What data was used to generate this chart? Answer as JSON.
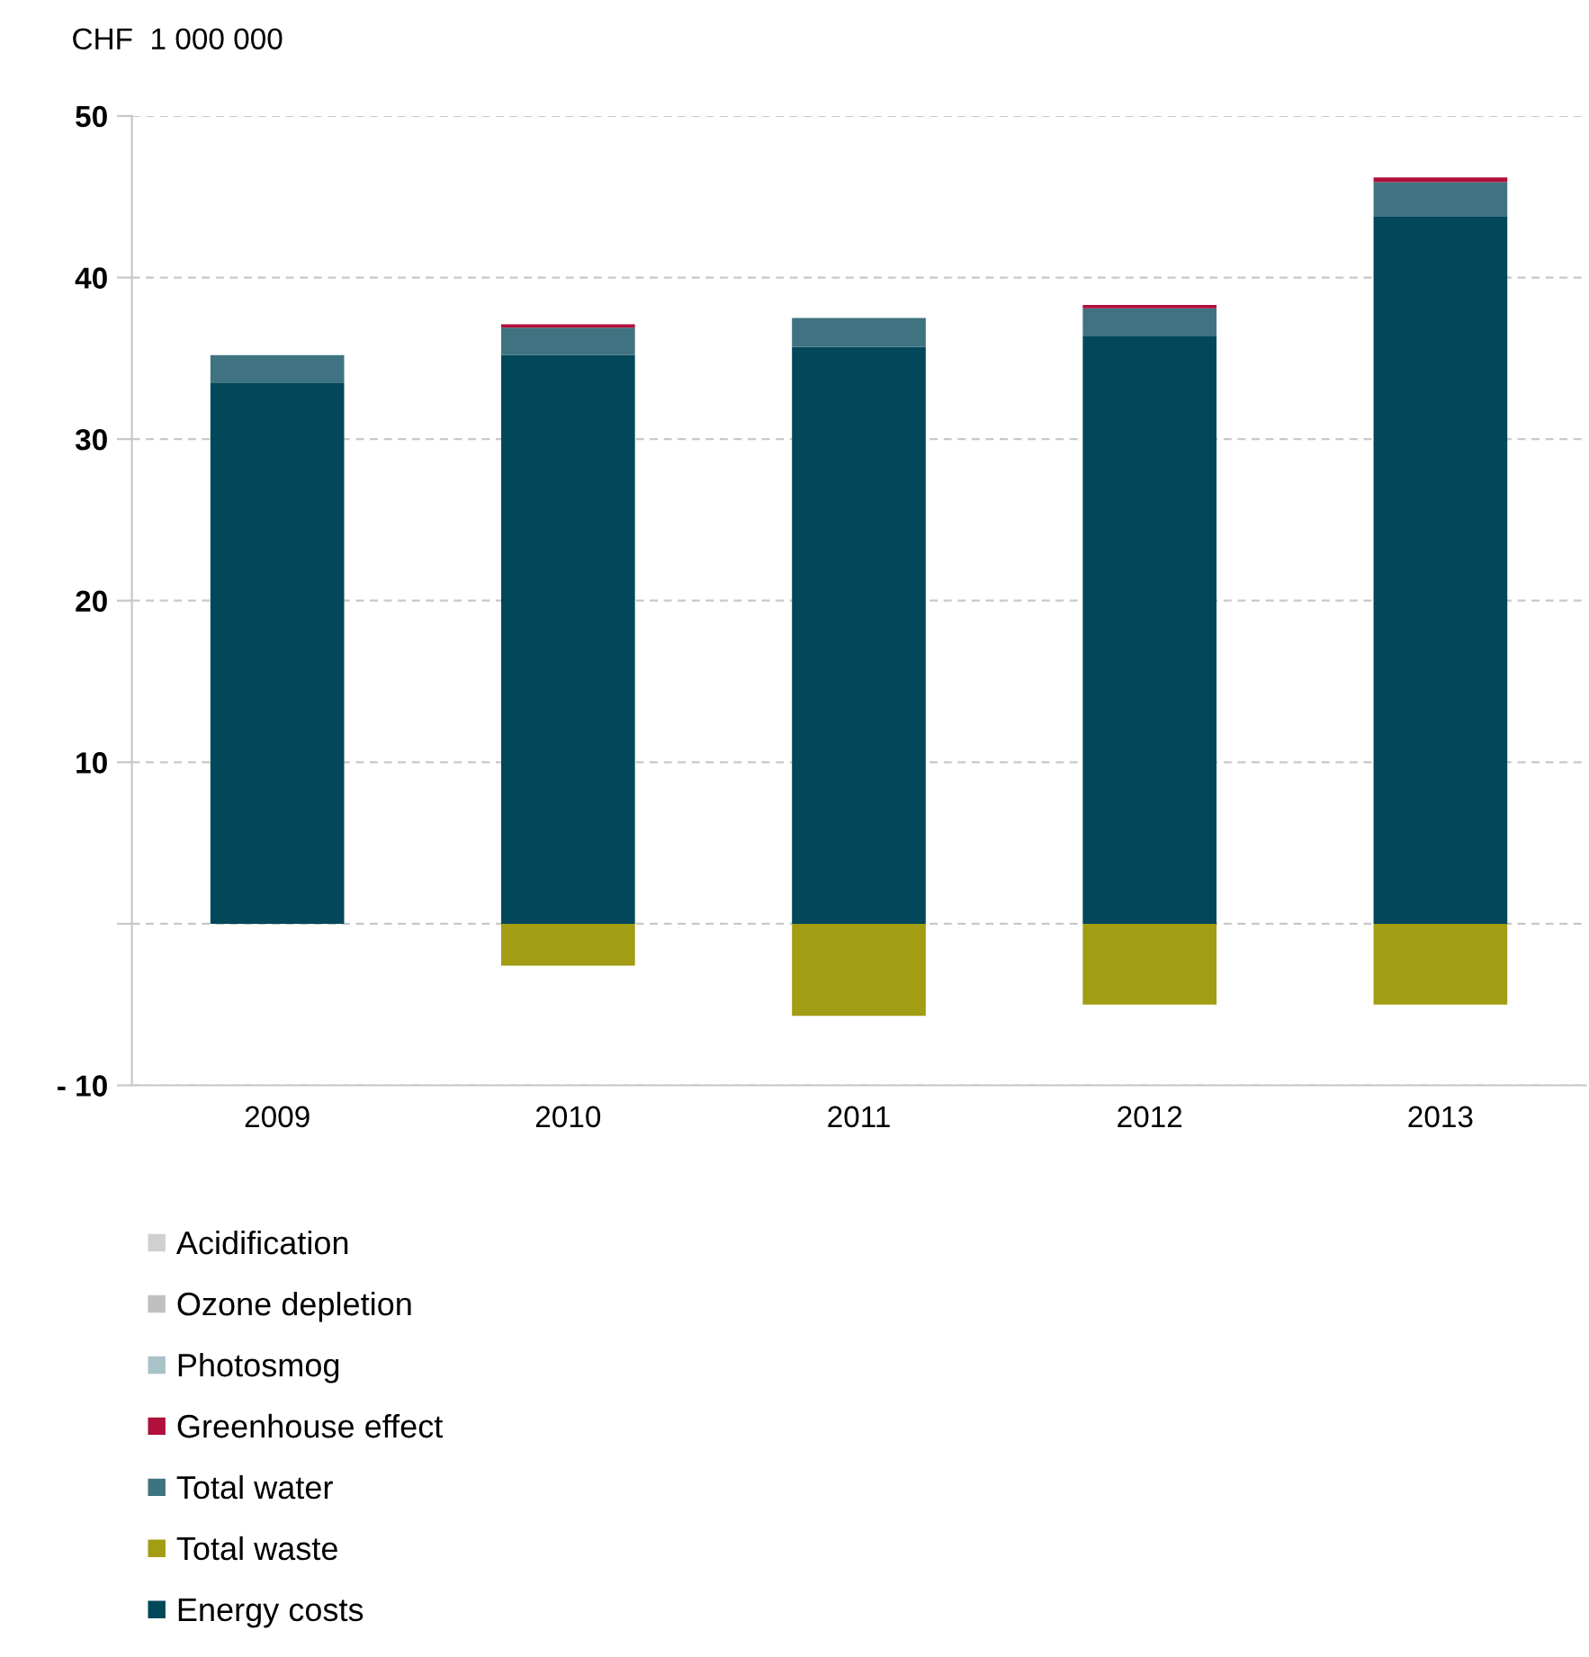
{
  "chart_data": {
    "type": "bar",
    "stacked": true,
    "ylabel": "CHF  1 000 000",
    "categories": [
      "2009",
      "2010",
      "2011",
      "2012",
      "2013"
    ],
    "series": [
      {
        "name": "Energy costs",
        "color": "#02475a",
        "values": [
          33.5,
          35.2,
          35.7,
          36.4,
          43.8
        ]
      },
      {
        "name": "Total waste",
        "color": "#a29d13",
        "values": [
          0,
          -2.6,
          -5.7,
          -5.0,
          -5.0
        ]
      },
      {
        "name": "Total water",
        "color": "#3f7381",
        "values": [
          1.7,
          1.7,
          1.8,
          1.7,
          2.1
        ]
      },
      {
        "name": "Greenhouse effect",
        "color": "#b0103c",
        "values": [
          0,
          0.2,
          0,
          0.2,
          0.3
        ]
      },
      {
        "name": "Photosmog",
        "color": "#a9c4c9",
        "values": [
          null,
          0,
          null,
          0,
          null
        ]
      },
      {
        "name": "Ozone depletion",
        "color": "#c0c0c0",
        "values": [
          0,
          0,
          0,
          0,
          0
        ]
      },
      {
        "name": "Acidification",
        "color": "#d0d0d0",
        "values": [
          0,
          0,
          0,
          0,
          0
        ]
      }
    ],
    "ylim": [
      -10,
      50
    ],
    "yticks": [
      {
        "value": -10,
        "label": "- 10"
      },
      {
        "value": 0,
        "label": null
      },
      10,
      20,
      30,
      40,
      50
    ],
    "grid": "y",
    "legend": "bottom"
  }
}
